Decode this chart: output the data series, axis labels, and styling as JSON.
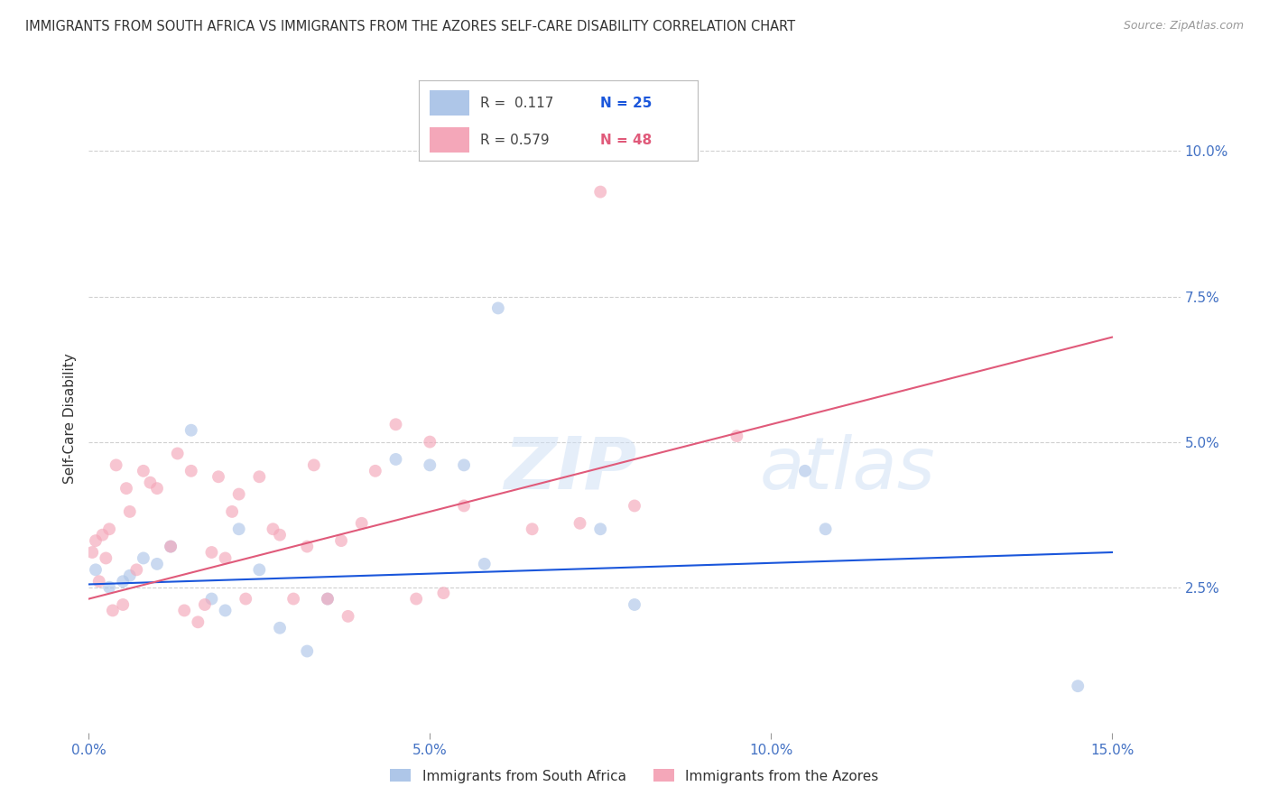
{
  "title": "IMMIGRANTS FROM SOUTH AFRICA VS IMMIGRANTS FROM THE AZORES SELF-CARE DISABILITY CORRELATION CHART",
  "source": "Source: ZipAtlas.com",
  "ylabel": "Self-Care Disability",
  "xlabel_vals": [
    0.0,
    5.0,
    10.0,
    15.0
  ],
  "ylabel_vals": [
    2.5,
    5.0,
    7.5,
    10.0
  ],
  "xlim": [
    0.0,
    16.0
  ],
  "ylim": [
    0.0,
    10.8
  ],
  "watermark_line1": "ZIP",
  "watermark_line2": "atlas",
  "legend_blue_r": "0.117",
  "legend_blue_n": "25",
  "legend_pink_r": "0.579",
  "legend_pink_n": "48",
  "blue_scatter_x": [
    0.1,
    0.3,
    0.5,
    0.6,
    0.8,
    1.0,
    1.2,
    1.5,
    1.8,
    2.0,
    2.2,
    2.5,
    2.8,
    3.2,
    3.5,
    4.5,
    5.5,
    5.8,
    6.0,
    7.5,
    8.0,
    10.5,
    10.8,
    14.5,
    5.0
  ],
  "blue_scatter_y": [
    2.8,
    2.5,
    2.6,
    2.7,
    3.0,
    2.9,
    3.2,
    5.2,
    2.3,
    2.1,
    3.5,
    2.8,
    1.8,
    1.4,
    2.3,
    4.7,
    4.6,
    2.9,
    7.3,
    3.5,
    2.2,
    4.5,
    3.5,
    0.8,
    4.6
  ],
  "pink_scatter_x": [
    0.05,
    0.1,
    0.15,
    0.2,
    0.25,
    0.3,
    0.4,
    0.5,
    0.6,
    0.7,
    0.8,
    0.9,
    1.0,
    1.2,
    1.3,
    1.5,
    1.7,
    1.9,
    2.0,
    2.2,
    2.3,
    2.5,
    2.7,
    3.0,
    3.2,
    3.5,
    3.7,
    4.0,
    4.2,
    4.5,
    5.0,
    5.2,
    5.5,
    6.5,
    7.2,
    7.5,
    8.0,
    9.5,
    2.8,
    1.8,
    3.8,
    0.35,
    1.4,
    0.55,
    2.1,
    4.8,
    1.6,
    3.3
  ],
  "pink_scatter_y": [
    3.1,
    3.3,
    2.6,
    3.4,
    3.0,
    3.5,
    4.6,
    2.2,
    3.8,
    2.8,
    4.5,
    4.3,
    4.2,
    3.2,
    4.8,
    4.5,
    2.2,
    4.4,
    3.0,
    4.1,
    2.3,
    4.4,
    3.5,
    2.3,
    3.2,
    2.3,
    3.3,
    3.6,
    4.5,
    5.3,
    5.0,
    2.4,
    3.9,
    3.5,
    3.6,
    9.3,
    3.9,
    5.1,
    3.4,
    3.1,
    2.0,
    2.1,
    2.1,
    4.2,
    3.8,
    2.3,
    1.9,
    4.6
  ],
  "blue_color": "#aec6e8",
  "pink_color": "#f4a7b9",
  "blue_line_color": "#1a56db",
  "pink_line_color": "#e05a7a",
  "blue_line_start_x": 0.0,
  "blue_line_start_y": 2.55,
  "blue_line_end_x": 15.0,
  "blue_line_end_y": 3.1,
  "pink_line_start_x": 0.0,
  "pink_line_start_y": 2.3,
  "pink_line_end_x": 15.0,
  "pink_line_end_y": 6.8,
  "grid_color": "#d0d0d0",
  "bg_color": "#ffffff",
  "title_color": "#333333",
  "axis_label_color": "#4472c4",
  "marker_size": 100,
  "marker_alpha": 0.65
}
